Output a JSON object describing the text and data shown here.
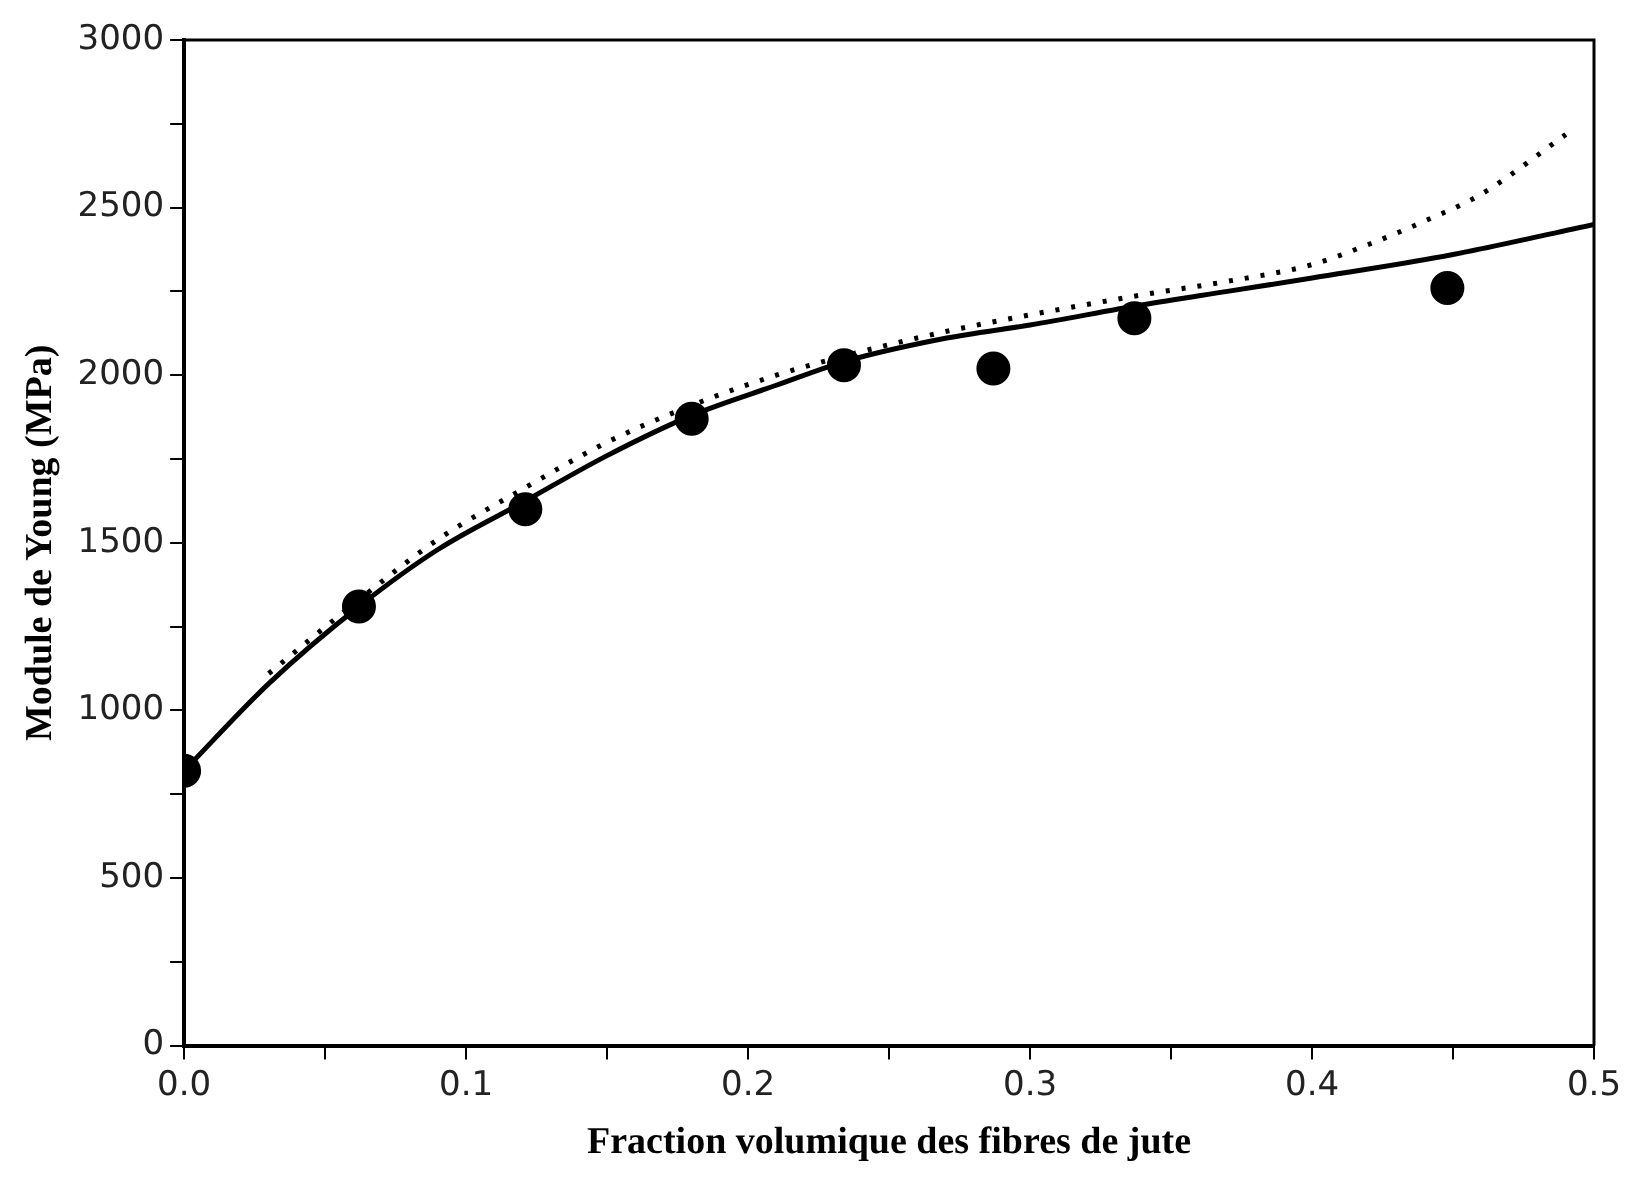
{
  "chart_data": {
    "type": "scatter",
    "xlabel": "Fraction volumique des fibres de jute",
    "ylabel": "Module de Young (MPa)",
    "xlim": [
      0,
      0.5
    ],
    "ylim": [
      0,
      3000
    ],
    "xticks": [
      {
        "value": 0,
        "label": "0.0"
      },
      {
        "value": 0.05,
        "label": null
      },
      0.1,
      {
        "value": 0.15,
        "label": null
      },
      0.2,
      {
        "value": 0.25,
        "label": null
      },
      0.3,
      {
        "value": 0.35,
        "label": null
      },
      0.4,
      {
        "value": 0.45,
        "label": null
      },
      0.5
    ],
    "yticks": [
      0,
      {
        "value": 250,
        "label": null
      },
      500,
      {
        "value": 750,
        "label": null
      },
      1000,
      {
        "value": 1250,
        "label": null
      },
      1500,
      {
        "value": 1750,
        "label": null
      },
      2000,
      {
        "value": 2250,
        "label": null
      },
      2500,
      {
        "value": 2750,
        "label": null
      },
      3000
    ],
    "grid": false,
    "legend": false,
    "series": [
      {
        "color": "#000000",
        "marker": "circle",
        "x": [
          0,
          0.062,
          0.121,
          0.18,
          0.234,
          0.287,
          0.337,
          0.448
        ],
        "values": [
          820,
          1310,
          1600,
          1870,
          2030,
          2020,
          2170,
          2260
        ]
      },
      {
        "type": "line",
        "color": "#000000",
        "marker": "none",
        "line_style": "solid",
        "x": [
          0,
          0.03,
          0.062,
          0.09,
          0.12,
          0.15,
          0.18,
          0.21,
          0.234,
          0.27,
          0.3,
          0.34,
          0.37,
          0.4,
          0.45,
          0.5
        ],
        "values": [
          820,
          1080,
          1310,
          1480,
          1620,
          1760,
          1880,
          1970,
          2040,
          2110,
          2150,
          2210,
          2250,
          2290,
          2360,
          2450
        ]
      },
      {
        "type": "line",
        "color": "#000000",
        "marker": "none",
        "line_style": "dotted",
        "x": [
          0.03,
          0.062,
          0.09,
          0.12,
          0.15,
          0.18,
          0.21,
          0.24,
          0.27,
          0.3,
          0.34,
          0.37,
          0.4,
          0.42,
          0.44,
          0.46,
          0.49
        ],
        "values": [
          1110,
          1330,
          1510,
          1660,
          1800,
          1910,
          2000,
          2070,
          2130,
          2180,
          2240,
          2280,
          2330,
          2390,
          2460,
          2540,
          2718
        ]
      }
    ]
  }
}
